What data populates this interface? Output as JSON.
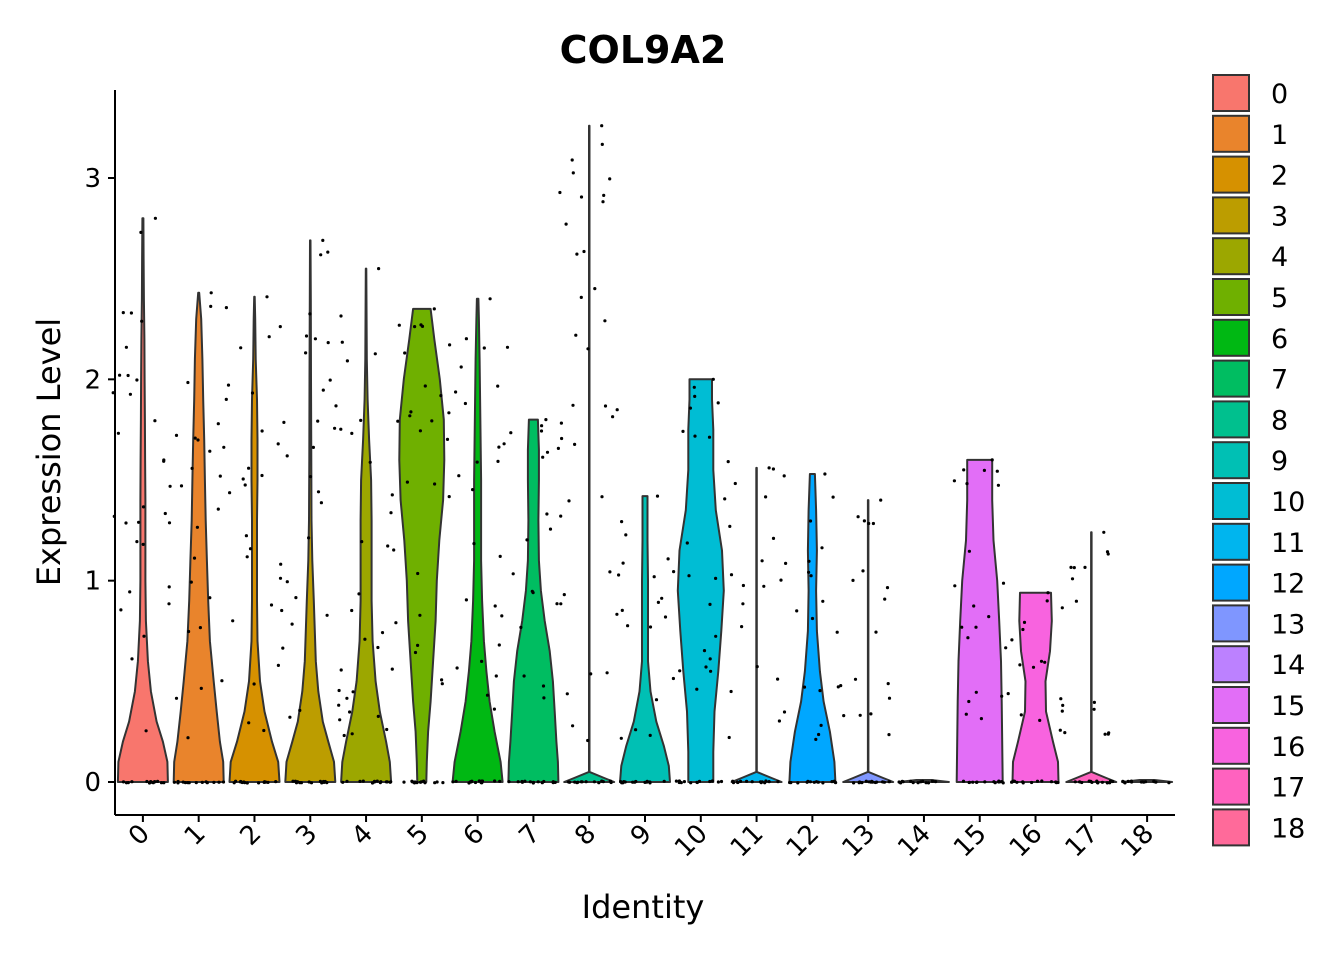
{
  "chart_data": {
    "type": "violin",
    "title": "COL9A2",
    "xlabel": "Identity",
    "ylabel": "Expression Level",
    "ylim": [
      -0.16,
      3.45
    ],
    "yticks": [
      "0",
      "1",
      "2",
      "3"
    ],
    "categories": [
      "0",
      "1",
      "2",
      "3",
      "4",
      "5",
      "6",
      "7",
      "8",
      "9",
      "10",
      "11",
      "12",
      "13",
      "14",
      "15",
      "16",
      "17",
      "18"
    ],
    "colors": [
      "#F8766D",
      "#E9842C",
      "#D69100",
      "#BC9D00",
      "#9CA700",
      "#6FB000",
      "#00B813",
      "#00BD61",
      "#00C08E",
      "#00C0B4",
      "#00BDD4",
      "#00B5EE",
      "#00A7FF",
      "#7F96FF",
      "#BC81FF",
      "#E26EF7",
      "#F863DF",
      "#FF62BF",
      "#FF6A9A"
    ],
    "violins": [
      {
        "max": 2.8,
        "shape": [
          [
            0,
            1
          ],
          [
            0.1,
            0.98
          ],
          [
            0.2,
            0.8
          ],
          [
            0.3,
            0.55
          ],
          [
            0.45,
            0.32
          ],
          [
            0.6,
            0.2
          ],
          [
            0.8,
            0.12
          ],
          [
            1.0,
            0.1
          ],
          [
            1.2,
            0.1
          ],
          [
            1.4,
            0.1
          ],
          [
            1.6,
            0.09
          ],
          [
            1.8,
            0.08
          ],
          [
            2.0,
            0.07
          ],
          [
            2.2,
            0.06
          ],
          [
            2.4,
            0.04
          ],
          [
            2.6,
            0.03
          ],
          [
            2.8,
            0.02
          ]
        ]
      },
      {
        "max": 2.43,
        "shape": [
          [
            0,
            1
          ],
          [
            0.1,
            0.98
          ],
          [
            0.2,
            0.85
          ],
          [
            0.35,
            0.72
          ],
          [
            0.5,
            0.6
          ],
          [
            0.7,
            0.45
          ],
          [
            0.9,
            0.38
          ],
          [
            1.1,
            0.33
          ],
          [
            1.3,
            0.28
          ],
          [
            1.5,
            0.25
          ],
          [
            1.7,
            0.22
          ],
          [
            1.9,
            0.18
          ],
          [
            2.1,
            0.15
          ],
          [
            2.3,
            0.1
          ],
          [
            2.43,
            0.02
          ]
        ]
      },
      {
        "max": 2.41,
        "shape": [
          [
            0,
            1
          ],
          [
            0.1,
            0.95
          ],
          [
            0.2,
            0.7
          ],
          [
            0.35,
            0.4
          ],
          [
            0.5,
            0.22
          ],
          [
            0.7,
            0.12
          ],
          [
            0.9,
            0.1
          ],
          [
            1.1,
            0.1
          ],
          [
            1.3,
            0.1
          ],
          [
            1.5,
            0.12
          ],
          [
            1.7,
            0.12
          ],
          [
            1.9,
            0.1
          ],
          [
            2.1,
            0.05
          ],
          [
            2.3,
            0.03
          ],
          [
            2.41,
            0.01
          ]
        ]
      },
      {
        "max": 2.69,
        "shape": [
          [
            0,
            1
          ],
          [
            0.1,
            0.95
          ],
          [
            0.2,
            0.72
          ],
          [
            0.3,
            0.5
          ],
          [
            0.45,
            0.32
          ],
          [
            0.6,
            0.22
          ],
          [
            0.75,
            0.18
          ],
          [
            0.9,
            0.14
          ],
          [
            1.1,
            0.08
          ],
          [
            1.3,
            0.05
          ],
          [
            1.6,
            0.04
          ],
          [
            2.0,
            0.03
          ],
          [
            2.4,
            0.02
          ],
          [
            2.69,
            0.01
          ]
        ]
      },
      {
        "max": 2.55,
        "shape": [
          [
            0,
            1
          ],
          [
            0.1,
            0.95
          ],
          [
            0.2,
            0.8
          ],
          [
            0.35,
            0.55
          ],
          [
            0.5,
            0.38
          ],
          [
            0.7,
            0.26
          ],
          [
            0.9,
            0.22
          ],
          [
            1.1,
            0.22
          ],
          [
            1.3,
            0.22
          ],
          [
            1.5,
            0.2
          ],
          [
            1.7,
            0.12
          ],
          [
            1.9,
            0.06
          ],
          [
            2.1,
            0.03
          ],
          [
            2.55,
            0.01
          ]
        ]
      },
      {
        "max": 2.35,
        "shape": [
          [
            0,
            0.18
          ],
          [
            0.1,
            0.2
          ],
          [
            0.25,
            0.25
          ],
          [
            0.4,
            0.35
          ],
          [
            0.6,
            0.45
          ],
          [
            0.8,
            0.55
          ],
          [
            1.0,
            0.6
          ],
          [
            1.2,
            0.7
          ],
          [
            1.4,
            0.85
          ],
          [
            1.6,
            0.9
          ],
          [
            1.8,
            0.88
          ],
          [
            2.0,
            0.72
          ],
          [
            2.2,
            0.5
          ],
          [
            2.35,
            0.35
          ]
        ]
      },
      {
        "max": 2.4,
        "shape": [
          [
            0,
            1
          ],
          [
            0.1,
            0.92
          ],
          [
            0.25,
            0.68
          ],
          [
            0.4,
            0.48
          ],
          [
            0.55,
            0.35
          ],
          [
            0.7,
            0.25
          ],
          [
            0.9,
            0.18
          ],
          [
            1.1,
            0.14
          ],
          [
            1.3,
            0.14
          ],
          [
            1.5,
            0.14
          ],
          [
            1.7,
            0.12
          ],
          [
            1.9,
            0.1
          ],
          [
            2.1,
            0.08
          ],
          [
            2.3,
            0.05
          ],
          [
            2.4,
            0.03
          ]
        ]
      },
      {
        "max": 1.8,
        "shape": [
          [
            0,
            1
          ],
          [
            0.1,
            0.98
          ],
          [
            0.2,
            0.92
          ],
          [
            0.35,
            0.85
          ],
          [
            0.5,
            0.78
          ],
          [
            0.65,
            0.65
          ],
          [
            0.8,
            0.45
          ],
          [
            0.95,
            0.3
          ],
          [
            1.1,
            0.22
          ],
          [
            1.3,
            0.2
          ],
          [
            1.5,
            0.22
          ],
          [
            1.65,
            0.22
          ],
          [
            1.8,
            0.18
          ]
        ]
      },
      {
        "max": 3.26,
        "shape": [
          [
            0,
            1
          ],
          [
            0.02,
            0.6
          ],
          [
            0.05,
            0.01
          ],
          [
            3.26,
            0.01
          ]
        ]
      },
      {
        "max": 1.42,
        "shape": [
          [
            0,
            1
          ],
          [
            0.08,
            0.95
          ],
          [
            0.18,
            0.75
          ],
          [
            0.3,
            0.45
          ],
          [
            0.45,
            0.22
          ],
          [
            0.6,
            0.12
          ],
          [
            0.8,
            0.12
          ],
          [
            1.0,
            0.12
          ],
          [
            1.2,
            0.1
          ],
          [
            1.42,
            0.1
          ]
        ]
      },
      {
        "max": 2.0,
        "shape": [
          [
            0,
            0.5
          ],
          [
            0.15,
            0.5
          ],
          [
            0.35,
            0.55
          ],
          [
            0.55,
            0.7
          ],
          [
            0.75,
            0.82
          ],
          [
            0.95,
            0.92
          ],
          [
            1.15,
            0.85
          ],
          [
            1.35,
            0.6
          ],
          [
            1.55,
            0.5
          ],
          [
            1.75,
            0.5
          ],
          [
            1.9,
            0.45
          ],
          [
            2.0,
            0.45
          ]
        ]
      },
      {
        "max": 1.56,
        "shape": [
          [
            0,
            1
          ],
          [
            0.02,
            0.6
          ],
          [
            0.05,
            0.01
          ],
          [
            1.56,
            0.01
          ]
        ]
      },
      {
        "max": 1.53,
        "shape": [
          [
            0,
            0.92
          ],
          [
            0.1,
            0.88
          ],
          [
            0.25,
            0.7
          ],
          [
            0.4,
            0.45
          ],
          [
            0.55,
            0.3
          ],
          [
            0.75,
            0.18
          ],
          [
            0.95,
            0.15
          ],
          [
            1.15,
            0.18
          ],
          [
            1.35,
            0.15
          ],
          [
            1.53,
            0.1
          ]
        ]
      },
      {
        "max": 1.4,
        "shape": [
          [
            0,
            1
          ],
          [
            0.02,
            0.6
          ],
          [
            0.05,
            0.01
          ],
          [
            1.4,
            0.01
          ]
        ]
      },
      {
        "max": 0.0,
        "shape": [
          [
            0,
            1
          ],
          [
            0.01,
            0.3
          ]
        ]
      },
      {
        "max": 1.6,
        "shape": [
          [
            0,
            0.92
          ],
          [
            0.2,
            0.9
          ],
          [
            0.4,
            0.88
          ],
          [
            0.6,
            0.85
          ],
          [
            0.8,
            0.78
          ],
          [
            1.0,
            0.7
          ],
          [
            1.2,
            0.55
          ],
          [
            1.4,
            0.5
          ],
          [
            1.6,
            0.5
          ]
        ]
      },
      {
        "max": 0.94,
        "shape": [
          [
            0,
            0.92
          ],
          [
            0.1,
            0.9
          ],
          [
            0.2,
            0.7
          ],
          [
            0.35,
            0.42
          ],
          [
            0.5,
            0.4
          ],
          [
            0.65,
            0.58
          ],
          [
            0.8,
            0.65
          ],
          [
            0.94,
            0.62
          ]
        ]
      },
      {
        "max": 1.24,
        "shape": [
          [
            0,
            1
          ],
          [
            0.02,
            0.6
          ],
          [
            0.05,
            0.01
          ],
          [
            1.24,
            0.01
          ]
        ]
      },
      {
        "max": 0.0,
        "shape": [
          [
            0,
            1
          ],
          [
            0.01,
            0.3
          ]
        ]
      }
    ]
  }
}
